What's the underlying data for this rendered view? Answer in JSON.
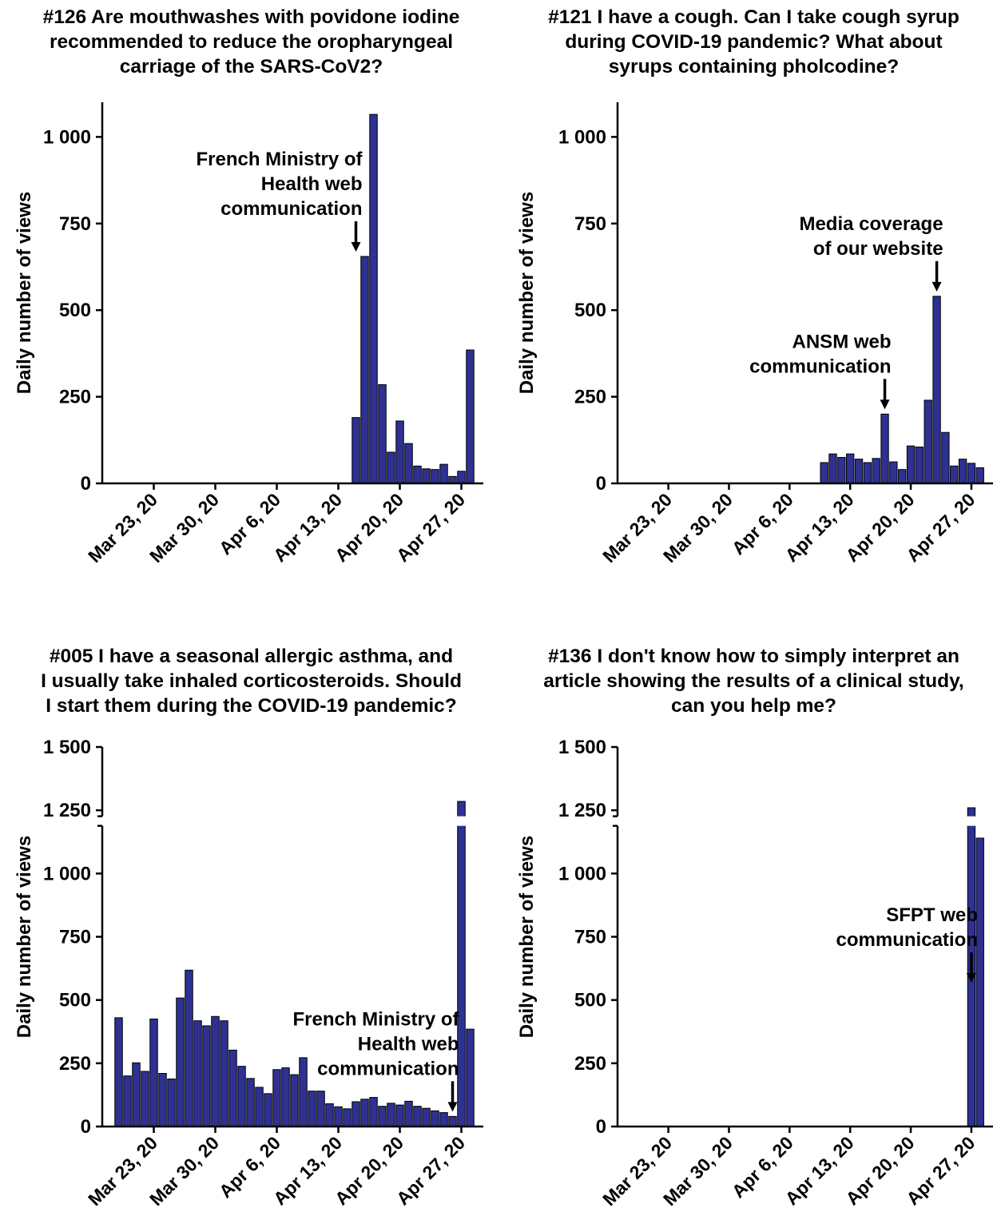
{
  "colors": {
    "bar": "#2e3192",
    "bar_stroke": "#000000",
    "axis": "#000000"
  },
  "chart_data": [
    {
      "type": "bar",
      "title_lines": [
        "#126 Are mouthwashes with povidone iodine",
        "recommended to reduce the oropharyngeal",
        "carriage of the SARS-CoV2?"
      ],
      "ylabel": "Daily number of views",
      "ylim": [
        0,
        1100
      ],
      "y_ticks": [
        0,
        250,
        500,
        750,
        1000
      ],
      "y_tick_labels": [
        "0",
        "250",
        "500",
        "750",
        "1 000"
      ],
      "x_start": "2020-03-18",
      "x_ticks": [
        "Mar 23, 20",
        "Mar 30, 20",
        "Apr 6, 20",
        "Apr 13, 20",
        "Apr 20, 20",
        "Apr 27, 20"
      ],
      "x": [
        "2020-04-15",
        "2020-04-16",
        "2020-04-17",
        "2020-04-18",
        "2020-04-19",
        "2020-04-20",
        "2020-04-21",
        "2020-04-22",
        "2020-04-23",
        "2020-04-24",
        "2020-04-25",
        "2020-04-26",
        "2020-04-27",
        "2020-04-28"
      ],
      "values": [
        190,
        655,
        1065,
        285,
        90,
        180,
        115,
        50,
        42,
        40,
        55,
        20,
        35,
        385
      ],
      "annotations": [
        {
          "lines": [
            "French Ministry of",
            "Health web",
            "communication"
          ],
          "date": "2020-04-15"
        }
      ]
    },
    {
      "type": "bar",
      "title_lines": [
        "#121 I have a cough. Can I take cough syrup",
        "during COVID-19 pandemic? What about",
        "syrups containing pholcodine?"
      ],
      "ylabel": "Daily number of views",
      "ylim": [
        0,
        1100
      ],
      "y_ticks": [
        0,
        250,
        500,
        750,
        1000
      ],
      "y_tick_labels": [
        "0",
        "250",
        "500",
        "750",
        "1 000"
      ],
      "x_start": "2020-03-18",
      "x_ticks": [
        "Mar 23, 20",
        "Mar 30, 20",
        "Apr 6, 20",
        "Apr 13, 20",
        "Apr 20, 20",
        "Apr 27, 20"
      ],
      "x": [
        "2020-04-10",
        "2020-04-11",
        "2020-04-12",
        "2020-04-13",
        "2020-04-14",
        "2020-04-15",
        "2020-04-16",
        "2020-04-17",
        "2020-04-18",
        "2020-04-19",
        "2020-04-20",
        "2020-04-21",
        "2020-04-22",
        "2020-04-23",
        "2020-04-24",
        "2020-04-25",
        "2020-04-26",
        "2020-04-27",
        "2020-04-28"
      ],
      "values": [
        60,
        85,
        75,
        85,
        70,
        60,
        72,
        200,
        62,
        40,
        108,
        105,
        240,
        540,
        147,
        50,
        70,
        58,
        45
      ],
      "annotations": [
        {
          "lines": [
            "ANSM web",
            "communication"
          ],
          "date": "2020-04-17"
        },
        {
          "lines": [
            "Media coverage",
            "of our website"
          ],
          "date": "2020-04-23"
        }
      ]
    },
    {
      "type": "bar",
      "title_lines": [
        "#005 I have a seasonal allergic asthma, and",
        "I usually take inhaled corticosteroids. Should",
        "I start them during the COVID-19 pandemic?"
      ],
      "ylabel": "Daily number of views",
      "ylim": [
        0,
        1500
      ],
      "axis_break": [
        1100,
        1200
      ],
      "y_ticks": [
        0,
        250,
        500,
        750,
        1000,
        1250,
        1500
      ],
      "y_tick_labels": [
        "0",
        "250",
        "500",
        "750",
        "1 000",
        "1 250",
        "1 500"
      ],
      "x_start": "2020-03-18",
      "x_ticks": [
        "Mar 23, 20",
        "Mar 30, 20",
        "Apr 6, 20",
        "Apr 13, 20",
        "Apr 20, 20",
        "Apr 27, 20"
      ],
      "x": [
        "2020-03-19",
        "2020-03-20",
        "2020-03-21",
        "2020-03-22",
        "2020-03-23",
        "2020-03-24",
        "2020-03-25",
        "2020-03-26",
        "2020-03-27",
        "2020-03-28",
        "2020-03-29",
        "2020-03-30",
        "2020-03-31",
        "2020-04-01",
        "2020-04-02",
        "2020-04-03",
        "2020-04-04",
        "2020-04-05",
        "2020-04-06",
        "2020-04-07",
        "2020-04-08",
        "2020-04-09",
        "2020-04-10",
        "2020-04-11",
        "2020-04-12",
        "2020-04-13",
        "2020-04-14",
        "2020-04-15",
        "2020-04-16",
        "2020-04-17",
        "2020-04-18",
        "2020-04-19",
        "2020-04-20",
        "2020-04-21",
        "2020-04-22",
        "2020-04-23",
        "2020-04-24",
        "2020-04-25",
        "2020-04-26",
        "2020-04-27",
        "2020-04-28"
      ],
      "values": [
        430,
        200,
        252,
        218,
        425,
        210,
        188,
        508,
        618,
        418,
        398,
        435,
        418,
        302,
        238,
        190,
        155,
        130,
        225,
        232,
        205,
        272,
        140,
        140,
        90,
        78,
        70,
        98,
        108,
        115,
        80,
        92,
        85,
        100,
        80,
        72,
        62,
        55,
        40,
        1285,
        385
      ],
      "annotations": [
        {
          "lines": [
            "French Ministry of",
            "Health web",
            "communication"
          ],
          "date": "2020-04-26"
        }
      ]
    },
    {
      "type": "bar",
      "title_lines": [
        "#136 I don't know how to simply interpret an",
        "article showing the results of a clinical study,",
        "can you help me?"
      ],
      "ylabel": "Daily number of views",
      "ylim": [
        0,
        1500
      ],
      "axis_break": [
        1100,
        1200
      ],
      "y_ticks": [
        0,
        250,
        500,
        750,
        1000,
        1250,
        1500
      ],
      "y_tick_labels": [
        "0",
        "250",
        "500",
        "750",
        "1 000",
        "1 250",
        "1 500"
      ],
      "x_start": "2020-03-18",
      "x_ticks": [
        "Mar 23, 20",
        "Mar 30, 20",
        "Apr 6, 20",
        "Apr 13, 20",
        "Apr 20, 20",
        "Apr 27, 20"
      ],
      "x": [
        "2020-04-27",
        "2020-04-28"
      ],
      "values": [
        1260,
        1140
      ],
      "annotations": [
        {
          "lines": [
            "SFPT web",
            "communication"
          ],
          "date": "2020-04-27"
        }
      ]
    }
  ]
}
